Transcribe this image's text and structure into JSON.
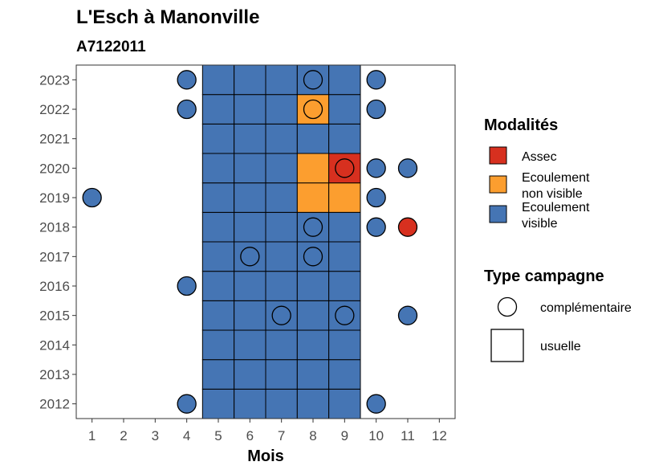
{
  "chart_data": {
    "type": "heatmap",
    "title": "L'Esch à Manonville",
    "subtitle": "A7122011",
    "xlabel": "Mois",
    "ylabel": "",
    "x_ticks": [
      1,
      2,
      3,
      4,
      5,
      6,
      7,
      8,
      9,
      10,
      11,
      12
    ],
    "y_ticks": [
      2012,
      2013,
      2014,
      2015,
      2016,
      2017,
      2018,
      2019,
      2020,
      2021,
      2022,
      2023
    ],
    "xlim": [
      0.5,
      12.5
    ],
    "ylim": [
      2011.5,
      2023.5
    ],
    "grid": false,
    "legend_position": "right",
    "colors": {
      "Assec": "#d7301f",
      "Ecoulement non visible": "#fc9e2f",
      "Ecoulement visible": "#4575b4"
    },
    "legend": {
      "modalites_title": "Modalités",
      "modalites": [
        {
          "key": "Assec",
          "label": [
            "Assec"
          ]
        },
        {
          "key": "Ecoulement non visible",
          "label": [
            "Ecoulement",
            "non visible"
          ]
        },
        {
          "key": "Ecoulement visible",
          "label": [
            "Ecoulement",
            "visible"
          ]
        }
      ],
      "type_title": "Type campagne",
      "types": [
        {
          "key": "complementaire",
          "label": "complémentaire",
          "shape": "circle"
        },
        {
          "key": "usuelle",
          "label": "usuelle",
          "shape": "square"
        }
      ]
    },
    "usuelle": {
      "months": [
        5,
        6,
        7,
        8,
        9
      ],
      "years": [
        2012,
        2013,
        2014,
        2015,
        2016,
        2017,
        2018,
        2019,
        2020,
        2021,
        2022,
        2023
      ],
      "default": "Ecoulement visible",
      "exceptions": [
        {
          "year": 2022,
          "month": 8,
          "value": "Ecoulement non visible"
        },
        {
          "year": 2020,
          "month": 8,
          "value": "Ecoulement non visible"
        },
        {
          "year": 2020,
          "month": 9,
          "value": "Assec"
        },
        {
          "year": 2019,
          "month": 8,
          "value": "Ecoulement non visible"
        },
        {
          "year": 2019,
          "month": 9,
          "value": "Ecoulement non visible"
        }
      ]
    },
    "complementaire": [
      {
        "year": 2023,
        "month": 4,
        "value": "Ecoulement visible"
      },
      {
        "year": 2023,
        "month": 8,
        "value": "Ecoulement visible"
      },
      {
        "year": 2023,
        "month": 10,
        "value": "Ecoulement visible"
      },
      {
        "year": 2022,
        "month": 4,
        "value": "Ecoulement visible"
      },
      {
        "year": 2022,
        "month": 8,
        "value": "Ecoulement non visible"
      },
      {
        "year": 2022,
        "month": 10,
        "value": "Ecoulement visible"
      },
      {
        "year": 2020,
        "month": 9,
        "value": "Assec"
      },
      {
        "year": 2020,
        "month": 10,
        "value": "Ecoulement visible"
      },
      {
        "year": 2020,
        "month": 11,
        "value": "Ecoulement visible"
      },
      {
        "year": 2019,
        "month": 1,
        "value": "Ecoulement visible"
      },
      {
        "year": 2019,
        "month": 10,
        "value": "Ecoulement visible"
      },
      {
        "year": 2018,
        "month": 8,
        "value": "Ecoulement visible"
      },
      {
        "year": 2018,
        "month": 10,
        "value": "Ecoulement visible"
      },
      {
        "year": 2018,
        "month": 11,
        "value": "Assec"
      },
      {
        "year": 2017,
        "month": 6,
        "value": "Ecoulement visible"
      },
      {
        "year": 2017,
        "month": 8,
        "value": "Ecoulement visible"
      },
      {
        "year": 2016,
        "month": 4,
        "value": "Ecoulement visible"
      },
      {
        "year": 2015,
        "month": 7,
        "value": "Ecoulement visible"
      },
      {
        "year": 2015,
        "month": 9,
        "value": "Ecoulement visible"
      },
      {
        "year": 2015,
        "month": 11,
        "value": "Ecoulement visible"
      },
      {
        "year": 2012,
        "month": 4,
        "value": "Ecoulement visible"
      },
      {
        "year": 2012,
        "month": 10,
        "value": "Ecoulement visible"
      }
    ]
  }
}
